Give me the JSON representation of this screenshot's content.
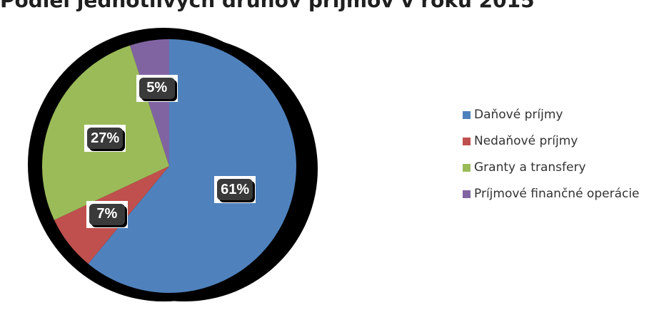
{
  "chart_data": {
    "type": "pie",
    "title": "Podiel jednotlivých druhov príjmov v roku 2015",
    "slices": [
      {
        "name": "Daňové príjmy",
        "value": 61,
        "label": "61%",
        "color": "#4f81bd"
      },
      {
        "name": "Nedaňové príjmy",
        "value": 7,
        "label": "7%",
        "color": "#c0504d"
      },
      {
        "name": "Granty a transfery",
        "value": 27,
        "label": "27%",
        "color": "#9bbb59"
      },
      {
        "name": "Príjmové finančné operácie",
        "value": 5,
        "label": "5%",
        "color": "#8064a2"
      }
    ],
    "legend_position": "right",
    "start_angle": "top, clockwise"
  }
}
